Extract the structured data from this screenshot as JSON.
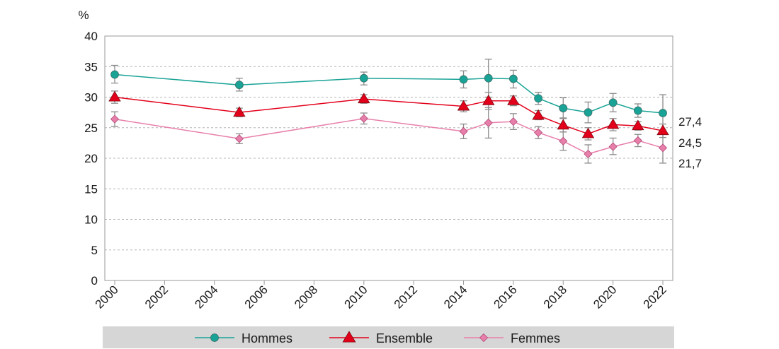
{
  "chart_data": {
    "type": "line",
    "y_unit_label": "%",
    "ylim": [
      0,
      40
    ],
    "y_ticks": [
      0,
      5,
      10,
      15,
      20,
      25,
      30,
      35,
      40
    ],
    "xlim": [
      2000,
      2022
    ],
    "x_ticks": [
      2000,
      2002,
      2004,
      2006,
      2008,
      2010,
      2012,
      2014,
      2016,
      2018,
      2020,
      2022
    ],
    "grid": "horizontal dashed",
    "legend_position": "bottom",
    "series": [
      {
        "name": "Hommes",
        "color": "#19a396",
        "marker": "circle",
        "end_label": "27,4",
        "points": [
          {
            "x": 2000,
            "y": 33.7,
            "low": 32.3,
            "high": 35.2
          },
          {
            "x": 2005,
            "y": 32.0,
            "low": 31.0,
            "high": 33.1
          },
          {
            "x": 2010,
            "y": 33.1,
            "low": 32.0,
            "high": 34.1
          },
          {
            "x": 2014,
            "y": 32.9,
            "low": 31.5,
            "high": 34.3
          },
          {
            "x": 2015,
            "y": 33.1,
            "low": 30.0,
            "high": 36.2
          },
          {
            "x": 2016,
            "y": 33.0,
            "low": 31.5,
            "high": 34.4
          },
          {
            "x": 2017,
            "y": 29.8,
            "low": 28.8,
            "high": 30.8
          },
          {
            "x": 2018,
            "y": 28.2,
            "low": 26.6,
            "high": 29.9
          },
          {
            "x": 2019,
            "y": 27.5,
            "low": 25.8,
            "high": 29.2
          },
          {
            "x": 2020,
            "y": 29.1,
            "low": 27.6,
            "high": 30.6
          },
          {
            "x": 2021,
            "y": 27.8,
            "low": 26.7,
            "high": 28.9
          },
          {
            "x": 2022,
            "y": 27.4,
            "low": 24.4,
            "high": 30.4
          }
        ]
      },
      {
        "name": "Ensemble",
        "color": "#e3001b",
        "marker": "triangle",
        "end_label": "24,5",
        "points": [
          {
            "x": 2000,
            "y": 30.0,
            "low": 29.0,
            "high": 31.0
          },
          {
            "x": 2005,
            "y": 27.5,
            "low": 26.8,
            "high": 28.2
          },
          {
            "x": 2010,
            "y": 29.7,
            "low": 29.0,
            "high": 30.4
          },
          {
            "x": 2014,
            "y": 28.5,
            "low": 27.6,
            "high": 29.4
          },
          {
            "x": 2015,
            "y": 29.4,
            "low": 28.0,
            "high": 30.8
          },
          {
            "x": 2016,
            "y": 29.4,
            "low": 28.6,
            "high": 30.2
          },
          {
            "x": 2017,
            "y": 27.0,
            "low": 26.3,
            "high": 27.8
          },
          {
            "x": 2018,
            "y": 25.4,
            "low": 24.3,
            "high": 26.5
          },
          {
            "x": 2019,
            "y": 24.0,
            "low": 23.0,
            "high": 25.0
          },
          {
            "x": 2020,
            "y": 25.5,
            "low": 24.5,
            "high": 26.5
          },
          {
            "x": 2021,
            "y": 25.3,
            "low": 24.6,
            "high": 26.0
          },
          {
            "x": 2022,
            "y": 24.5,
            "low": 23.4,
            "high": 25.6
          }
        ]
      },
      {
        "name": "Femmes",
        "color": "#e87fab",
        "marker": "diamond",
        "end_label": "21,7",
        "points": [
          {
            "x": 2000,
            "y": 26.4,
            "low": 25.2,
            "high": 27.6
          },
          {
            "x": 2005,
            "y": 23.2,
            "low": 22.4,
            "high": 24.0
          },
          {
            "x": 2010,
            "y": 26.5,
            "low": 25.6,
            "high": 27.4
          },
          {
            "x": 2014,
            "y": 24.4,
            "low": 23.2,
            "high": 25.6
          },
          {
            "x": 2015,
            "y": 25.8,
            "low": 23.3,
            "high": 28.3
          },
          {
            "x": 2016,
            "y": 26.0,
            "low": 24.7,
            "high": 27.3
          },
          {
            "x": 2017,
            "y": 24.2,
            "low": 23.2,
            "high": 25.2
          },
          {
            "x": 2018,
            "y": 22.8,
            "low": 21.3,
            "high": 24.3
          },
          {
            "x": 2019,
            "y": 20.7,
            "low": 19.2,
            "high": 22.2
          },
          {
            "x": 2020,
            "y": 21.9,
            "low": 20.6,
            "high": 23.3
          },
          {
            "x": 2021,
            "y": 22.9,
            "low": 21.9,
            "high": 23.9
          },
          {
            "x": 2022,
            "y": 21.7,
            "low": 19.2,
            "high": 24.2
          }
        ]
      }
    ]
  }
}
